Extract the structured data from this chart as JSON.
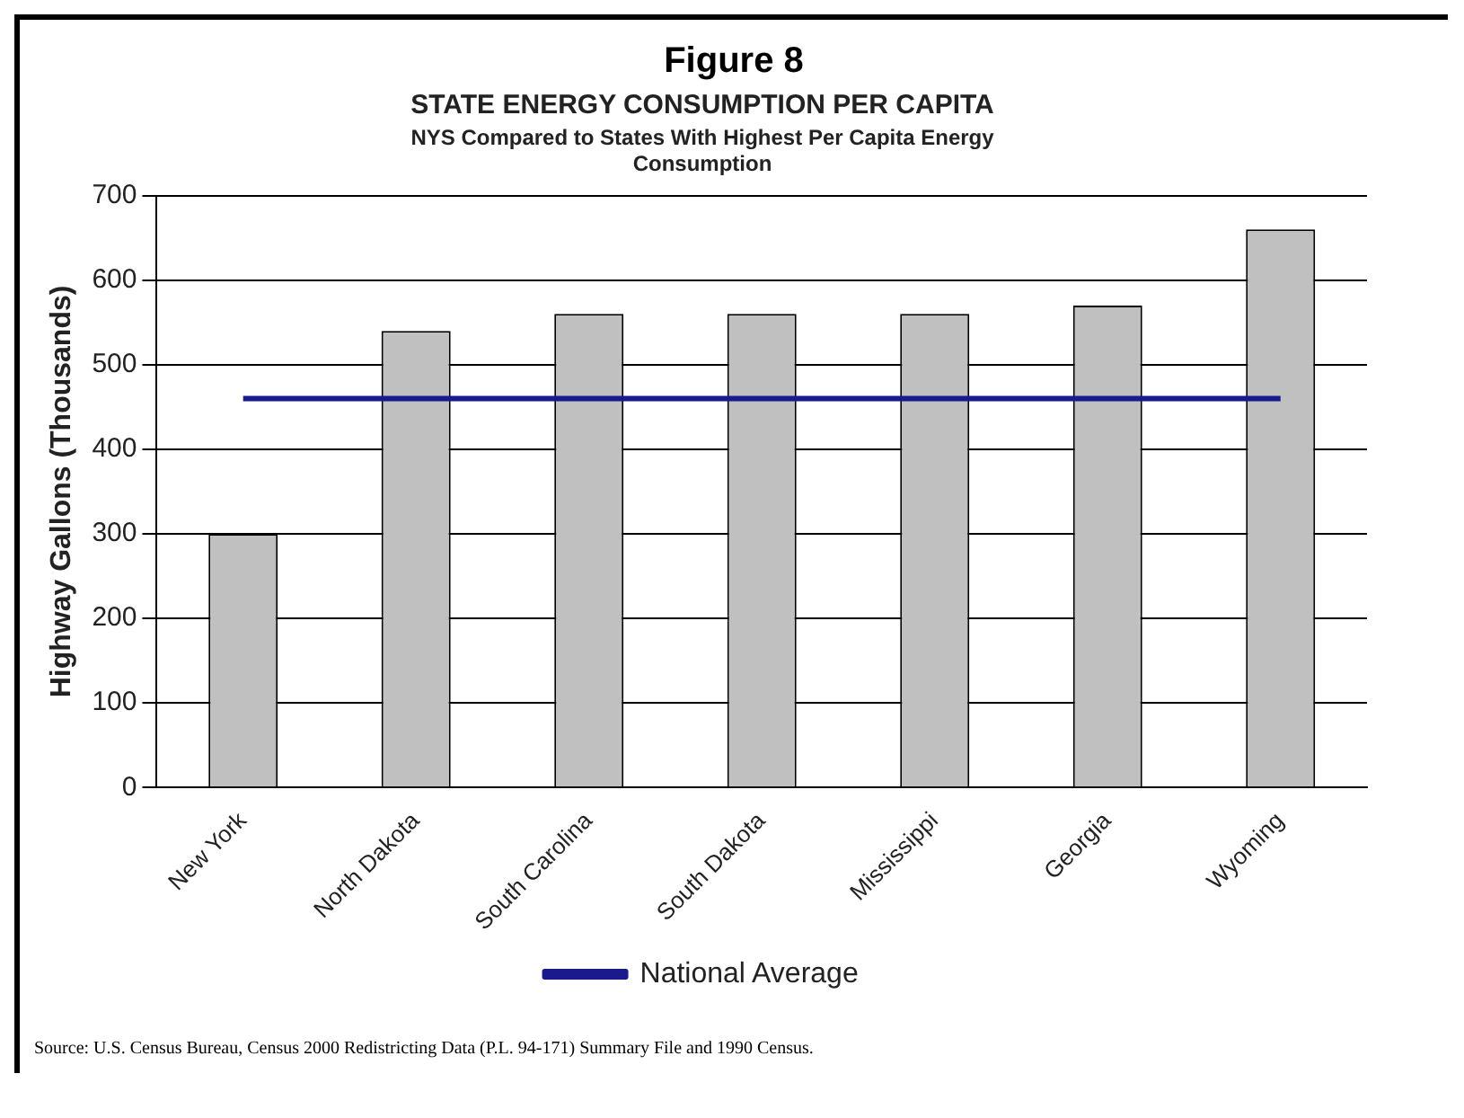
{
  "chart_data": {
    "type": "bar",
    "title": "STATE ENERGY CONSUMPTION PER CAPITA",
    "subtitle": "NYS Compared to States With Highest Per Capita Energy Consumption",
    "ylabel": "Highway Gallons (Thousands)",
    "categories": [
      "New York",
      "North Dakota",
      "South Carolina",
      "South Dakota",
      "Mississippi",
      "Georgia",
      "Wyoming"
    ],
    "series": [
      {
        "color": "#c0c0c0",
        "values": [
          300,
          540,
          560,
          560,
          560,
          570,
          660
        ]
      },
      {
        "type": "line",
        "name": "National Average",
        "color": "#1a1a8c",
        "values": [
          460,
          460,
          460,
          460,
          460,
          460,
          460
        ]
      }
    ],
    "ylim": [
      0,
      700
    ],
    "yticks": [
      0,
      100,
      200,
      300,
      400,
      500,
      600,
      700
    ],
    "grid": "y",
    "legend": "bottom",
    "annotations": [
      "Figure 8",
      "Source:  U.S. Census Bureau, Census 2000 Redistricting Data (P.L. 94-171) Summary File and 1990 Census."
    ]
  }
}
